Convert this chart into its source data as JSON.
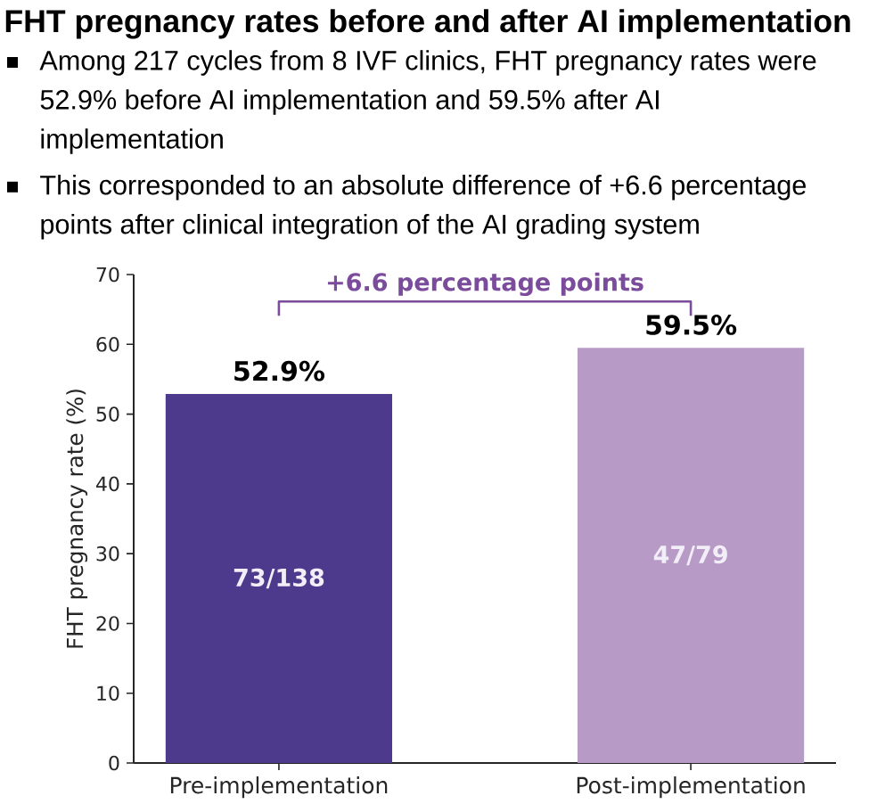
{
  "chart_data": {
    "type": "bar",
    "title": "FHT pregnancy rates before and after AI implementation",
    "ylabel": "FHT pregnancy rate (%)",
    "categories": [
      "Pre-implementation",
      "Post-implementation"
    ],
    "values": [
      52.9,
      59.5
    ],
    "colors": [
      "#4e3a8c",
      "#b89ac6"
    ],
    "value_labels": [
      "52.9%",
      "59.5%"
    ],
    "ylim": [
      0,
      70
    ],
    "yticks": [
      0,
      10,
      20,
      30,
      40,
      50,
      60,
      70
    ],
    "annotations": [
      "Among 217 cycles from 8 IVF clinics, FHT pregnancy rates were 52.9% before AI implementation and 59.5% after AI implementation",
      "This corresponded to an absolute difference of +6.6 percentage points after clinical integration of the AI grading system",
      "+6.6 percentage points",
      "73/138",
      "47/79"
    ]
  }
}
